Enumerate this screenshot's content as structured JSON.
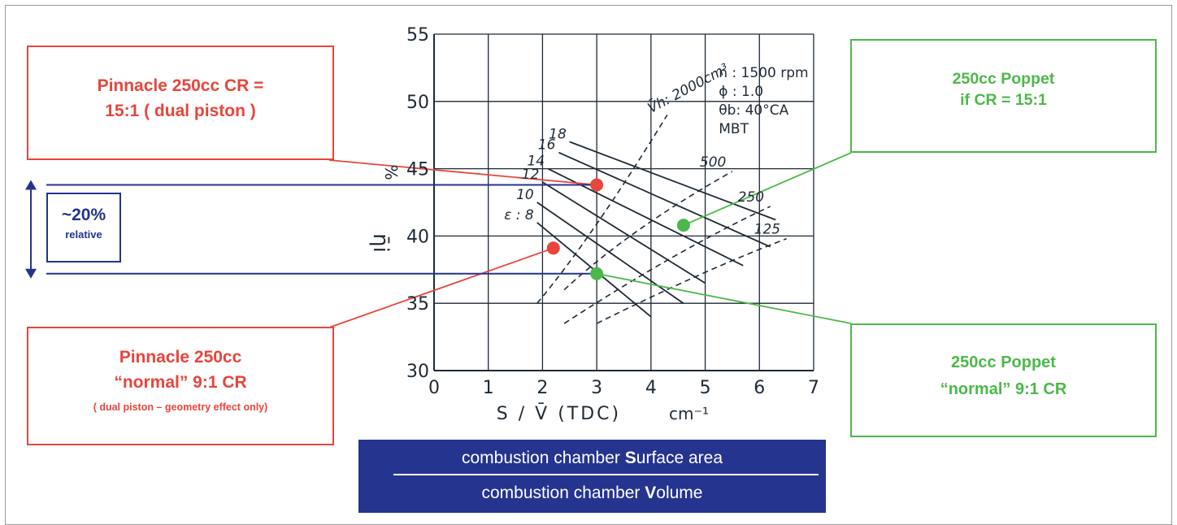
{
  "chart_data": {
    "type": "line",
    "xlabel": "S / V̄ (TDC)",
    "xunit": "cm⁻¹",
    "ylabel": "η̄i",
    "ylabel_suffix": "%",
    "xlim": [
      0,
      7
    ],
    "ylim": [
      30,
      55
    ],
    "x_ticks": [
      "0",
      "1",
      "2",
      "3",
      "4",
      "5",
      "6",
      "7"
    ],
    "y_ticks": [
      "30",
      "35",
      "40",
      "45",
      "50",
      "55"
    ],
    "grid": true,
    "conditions": [
      "n : 1500 rpm",
      "ϕ : 1.0",
      "θb: 40°CA",
      "MBT"
    ],
    "cr_series": [
      {
        "name": "ε : 8",
        "x": [
          1.9,
          4.0
        ],
        "y": [
          41.0,
          34.0
        ]
      },
      {
        "name": "10",
        "x": [
          1.9,
          4.6
        ],
        "y": [
          42.5,
          35.0
        ]
      },
      {
        "name": "12",
        "x": [
          2.0,
          5.0
        ],
        "y": [
          44.0,
          36.5
        ]
      },
      {
        "name": "14",
        "x": [
          2.1,
          5.7
        ],
        "y": [
          45.0,
          37.8
        ]
      },
      {
        "name": "16",
        "x": [
          2.3,
          6.2
        ],
        "y": [
          46.2,
          39.2
        ]
      },
      {
        "name": "18",
        "x": [
          2.5,
          6.3
        ],
        "y": [
          47.0,
          41.2
        ]
      }
    ],
    "volume_series": [
      {
        "name": "V̄h: 2000cm³",
        "x": [
          1.9,
          2.9,
          4.3
        ],
        "y": [
          35.0,
          39.8,
          49.0
        ]
      },
      {
        "name": "500",
        "x": [
          2.4,
          3.6,
          5.5
        ],
        "y": [
          36.0,
          40.5,
          44.8
        ]
      },
      {
        "name": "250",
        "x": [
          2.4,
          4.5,
          6.2
        ],
        "y": [
          33.5,
          39.0,
          42.2
        ]
      },
      {
        "name": "125",
        "x": [
          3.0,
          5.0,
          6.5
        ],
        "y": [
          33.5,
          37.5,
          39.8
        ]
      }
    ],
    "points": [
      {
        "name": "Pinnacle 250cc CR 15:1",
        "x": 3.0,
        "y": 43.8,
        "color": "#e8453c"
      },
      {
        "name": "Pinnacle 250cc 9:1",
        "x": 2.2,
        "y": 39.1,
        "color": "#e8453c"
      },
      {
        "name": "250cc Poppet if CR 15:1",
        "x": 4.6,
        "y": 40.8,
        "color": "#4cb84a"
      },
      {
        "name": "250cc Poppet 9:1",
        "x": 3.0,
        "y": 37.2,
        "color": "#4cb84a"
      }
    ]
  },
  "callouts": {
    "top_left": {
      "line1": "Pinnacle 250cc CR =",
      "line2": "15:1 ( dual piston )"
    },
    "bottom_left": {
      "line1": "Pinnacle  250cc",
      "line2": "“normal” 9:1 CR",
      "note": "( dual piston – geometry effect  only)"
    },
    "top_right": {
      "line1": "250cc Poppet",
      "line2": "if CR = 15:1"
    },
    "bottom_right": {
      "line1": "250cc Poppet",
      "line2": "“normal” 9:1 CR"
    }
  },
  "relative": {
    "pct": "~20%",
    "label": "relative"
  },
  "formula": {
    "numerator": "combustion chamber Surface area",
    "denominator": "combustion chamber Volume"
  },
  "colors": {
    "red": "#e8453c",
    "green": "#4cb84a",
    "navy": "#24348c",
    "plot": "#1e2a36"
  }
}
